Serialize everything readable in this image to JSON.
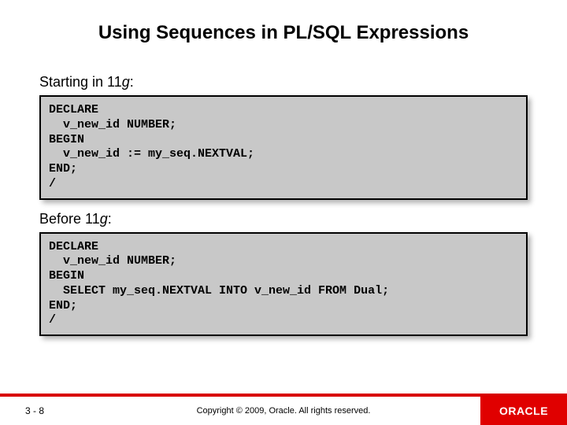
{
  "title": "Using Sequences in PL/SQL Expressions",
  "section1": {
    "prefix": "Starting in 11",
    "italic": "g",
    "suffix": ":"
  },
  "code1": "DECLARE\n  v_new_id NUMBER;\nBEGIN\n  v_new_id := my_seq.NEXTVAL;\nEND;\n/",
  "section2": {
    "prefix": "Before 11",
    "italic": "g",
    "suffix": ":"
  },
  "code2": "DECLARE\n  v_new_id NUMBER;\nBEGIN\n  SELECT my_seq.NEXTVAL INTO v_new_id FROM Dual;\nEND;\n/",
  "footer": {
    "page": "3 - 8",
    "copyright": "Copyright © 2009, Oracle. All rights reserved.",
    "logo": "ORACLE"
  },
  "colors": {
    "code_bg": "#c8c8c8",
    "red_bar": "#d80000",
    "logo_bg": "#e00000"
  }
}
